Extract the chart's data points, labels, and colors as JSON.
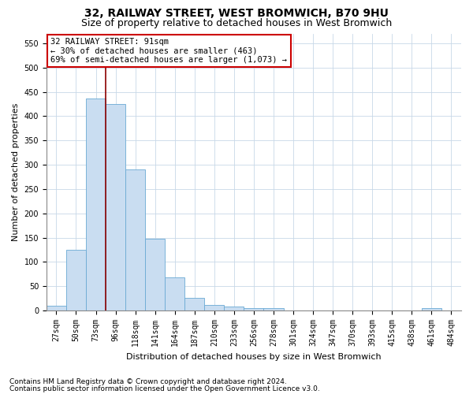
{
  "title": "32, RAILWAY STREET, WEST BROMWICH, B70 9HU",
  "subtitle": "Size of property relative to detached houses in West Bromwich",
  "xlabel": "Distribution of detached houses by size in West Bromwich",
  "ylabel": "Number of detached properties",
  "footnote1": "Contains HM Land Registry data © Crown copyright and database right 2024.",
  "footnote2": "Contains public sector information licensed under the Open Government Licence v3.0.",
  "bar_color": "#c9ddf1",
  "bar_edgecolor": "#6aaad4",
  "vline_x": 2.5,
  "vline_color": "#8b0000",
  "annotation_line1": "32 RAILWAY STREET: 91sqm",
  "annotation_line2": "← 30% of detached houses are smaller (463)",
  "annotation_line3": "69% of semi-detached houses are larger (1,073) →",
  "annotation_box_color": "#ffffff",
  "annotation_box_edgecolor": "#cc0000",
  "categories": [
    "27sqm",
    "50sqm",
    "73sqm",
    "96sqm",
    "118sqm",
    "141sqm",
    "164sqm",
    "187sqm",
    "210sqm",
    "233sqm",
    "256sqm",
    "278sqm",
    "301sqm",
    "324sqm",
    "347sqm",
    "370sqm",
    "393sqm",
    "415sqm",
    "438sqm",
    "461sqm",
    "484sqm"
  ],
  "values": [
    10,
    125,
    437,
    425,
    290,
    147,
    68,
    26,
    11,
    8,
    5,
    5,
    0,
    1,
    0,
    0,
    1,
    0,
    1,
    5,
    0
  ],
  "ylim": [
    0,
    570
  ],
  "yticks": [
    0,
    50,
    100,
    150,
    200,
    250,
    300,
    350,
    400,
    450,
    500,
    550
  ],
  "grid_color": "#c8d8e8",
  "background_color": "#ffffff",
  "title_fontsize": 10,
  "subtitle_fontsize": 9,
  "axis_label_fontsize": 8,
  "tick_fontsize": 7,
  "annotation_fontsize": 7.5,
  "footnote_fontsize": 6.5
}
